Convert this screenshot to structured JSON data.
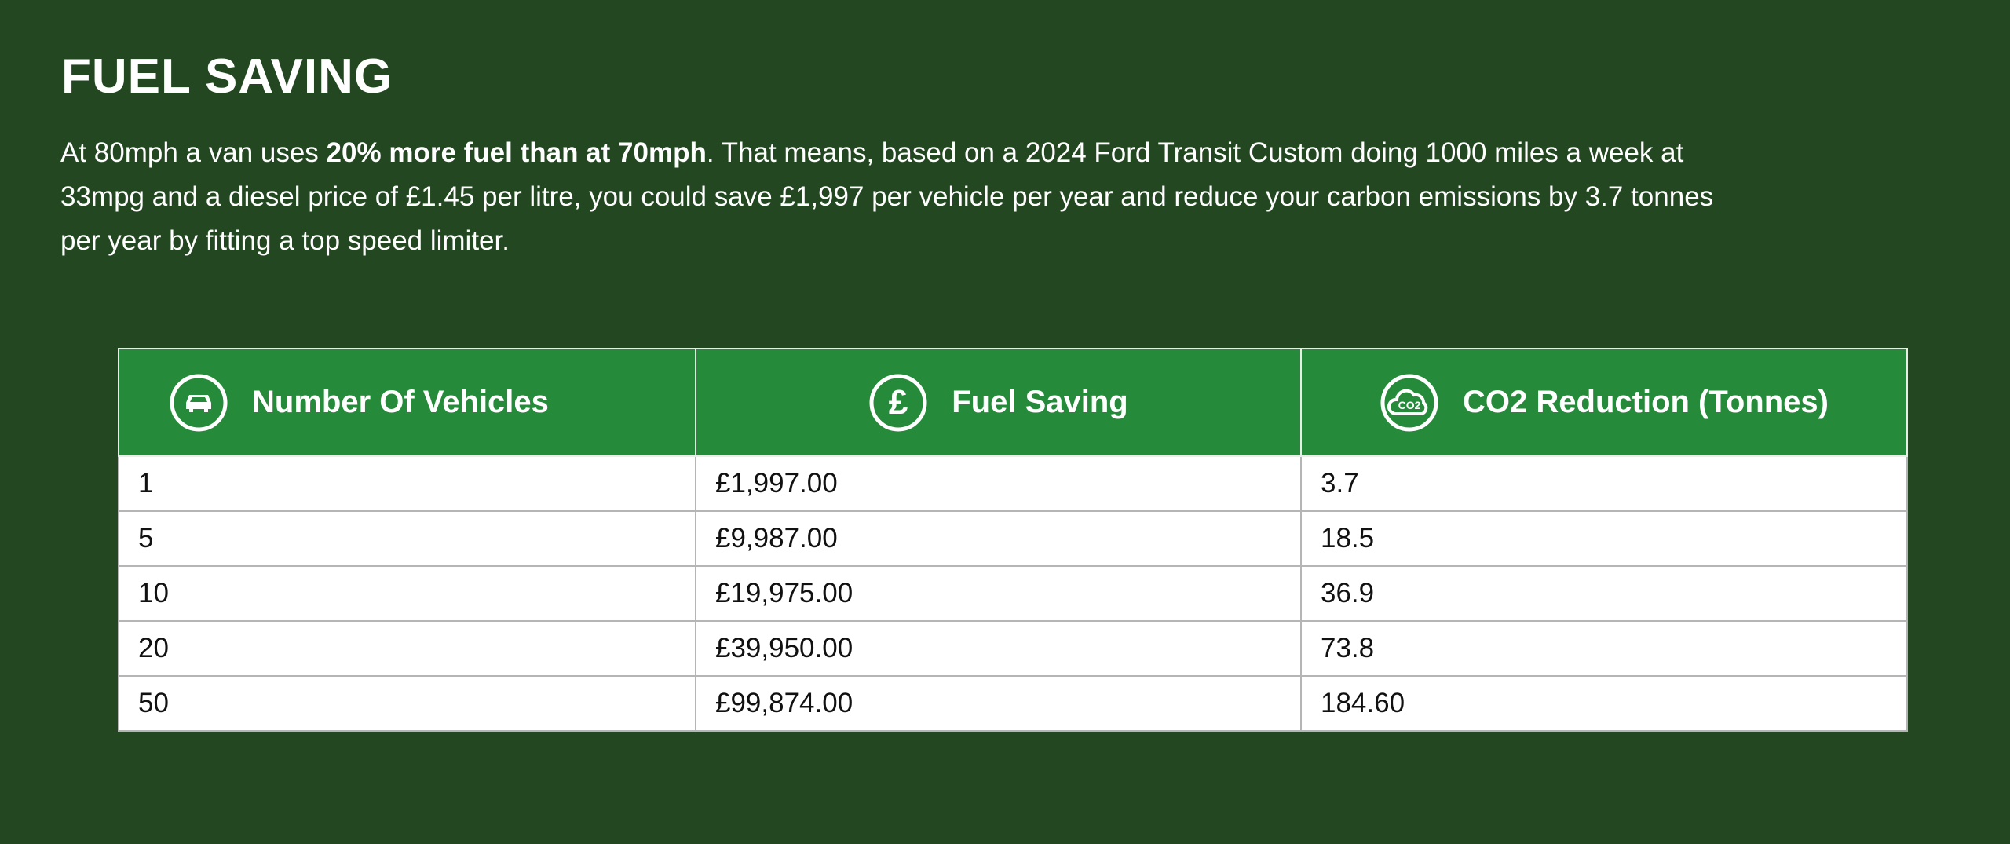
{
  "header": {
    "title": "FUEL SAVING"
  },
  "paragraph": {
    "lines": [
      [
        "At 80mph a van uses ",
        "20% more fuel than at 70mph",
        ". That means, based on a 2024 Ford Transit Custom doing 1000 miles a week at"
      ],
      [
        "33mpg and a diesel price of £1.45 per litre, you could save £1,997 per vehicle per year and reduce your carbon emissions by 3.7 tonnes"
      ],
      [
        "per year by fitting a top speed limiter."
      ]
    ]
  },
  "table": {
    "columns": [
      {
        "label": "Number Of Vehicles",
        "icon": "car"
      },
      {
        "label": "Fuel Saving",
        "icon": "£"
      },
      {
        "label": "CO2 Reduction (Tonnes)",
        "icon": "CO2"
      }
    ],
    "rows": [
      [
        "1",
        "£1,997.00",
        "3.7"
      ],
      [
        "5",
        "£9,987.00",
        "18.5"
      ],
      [
        "10",
        "£19,975.00",
        "36.9"
      ],
      [
        "20",
        "£39,950.00",
        "73.8"
      ],
      [
        "50",
        "£99,874.00",
        "184.60"
      ]
    ]
  }
}
